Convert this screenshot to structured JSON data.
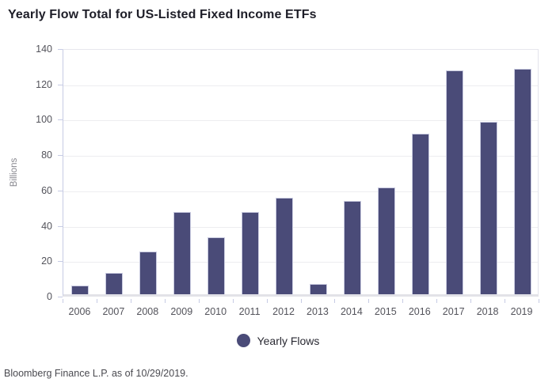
{
  "header": {
    "title": "Yearly Flow Total for US-Listed Fixed Income ETFs"
  },
  "chart_data": {
    "type": "bar",
    "title": "Yearly Flow Total for US-Listed Fixed Income ETFs",
    "categories": [
      "2006",
      "2007",
      "2008",
      "2009",
      "2010",
      "2011",
      "2012",
      "2013",
      "2014",
      "2015",
      "2016",
      "2017",
      "2018",
      "2019"
    ],
    "series": [
      {
        "name": "Yearly Flows",
        "values": [
          5,
          12,
          24,
          46.5,
          32,
          46.5,
          54.5,
          6,
          53,
          60.5,
          91,
          126.5,
          97.5,
          127.5
        ]
      }
    ],
    "xlabel": "",
    "ylabel": "Billions",
    "ylim": [
      0,
      140
    ],
    "yticks": [
      0,
      20,
      40,
      60,
      80,
      100,
      120,
      140
    ],
    "grid": true,
    "legend_position": "bottom",
    "bar_color": "#4a4b78",
    "bar_border_color": "#c9cbe0"
  },
  "legend": {
    "label": "Yearly Flows",
    "marker_color": "#4a4b78"
  },
  "footer": {
    "source": "Bloomberg Finance L.P. as of 10/29/2019."
  },
  "colors": {
    "background": "#ffffff",
    "title_text": "#1e1e28",
    "tick_text": "#53535b",
    "axis_line": "#c6cbe4",
    "gridline": "#ededf0"
  }
}
